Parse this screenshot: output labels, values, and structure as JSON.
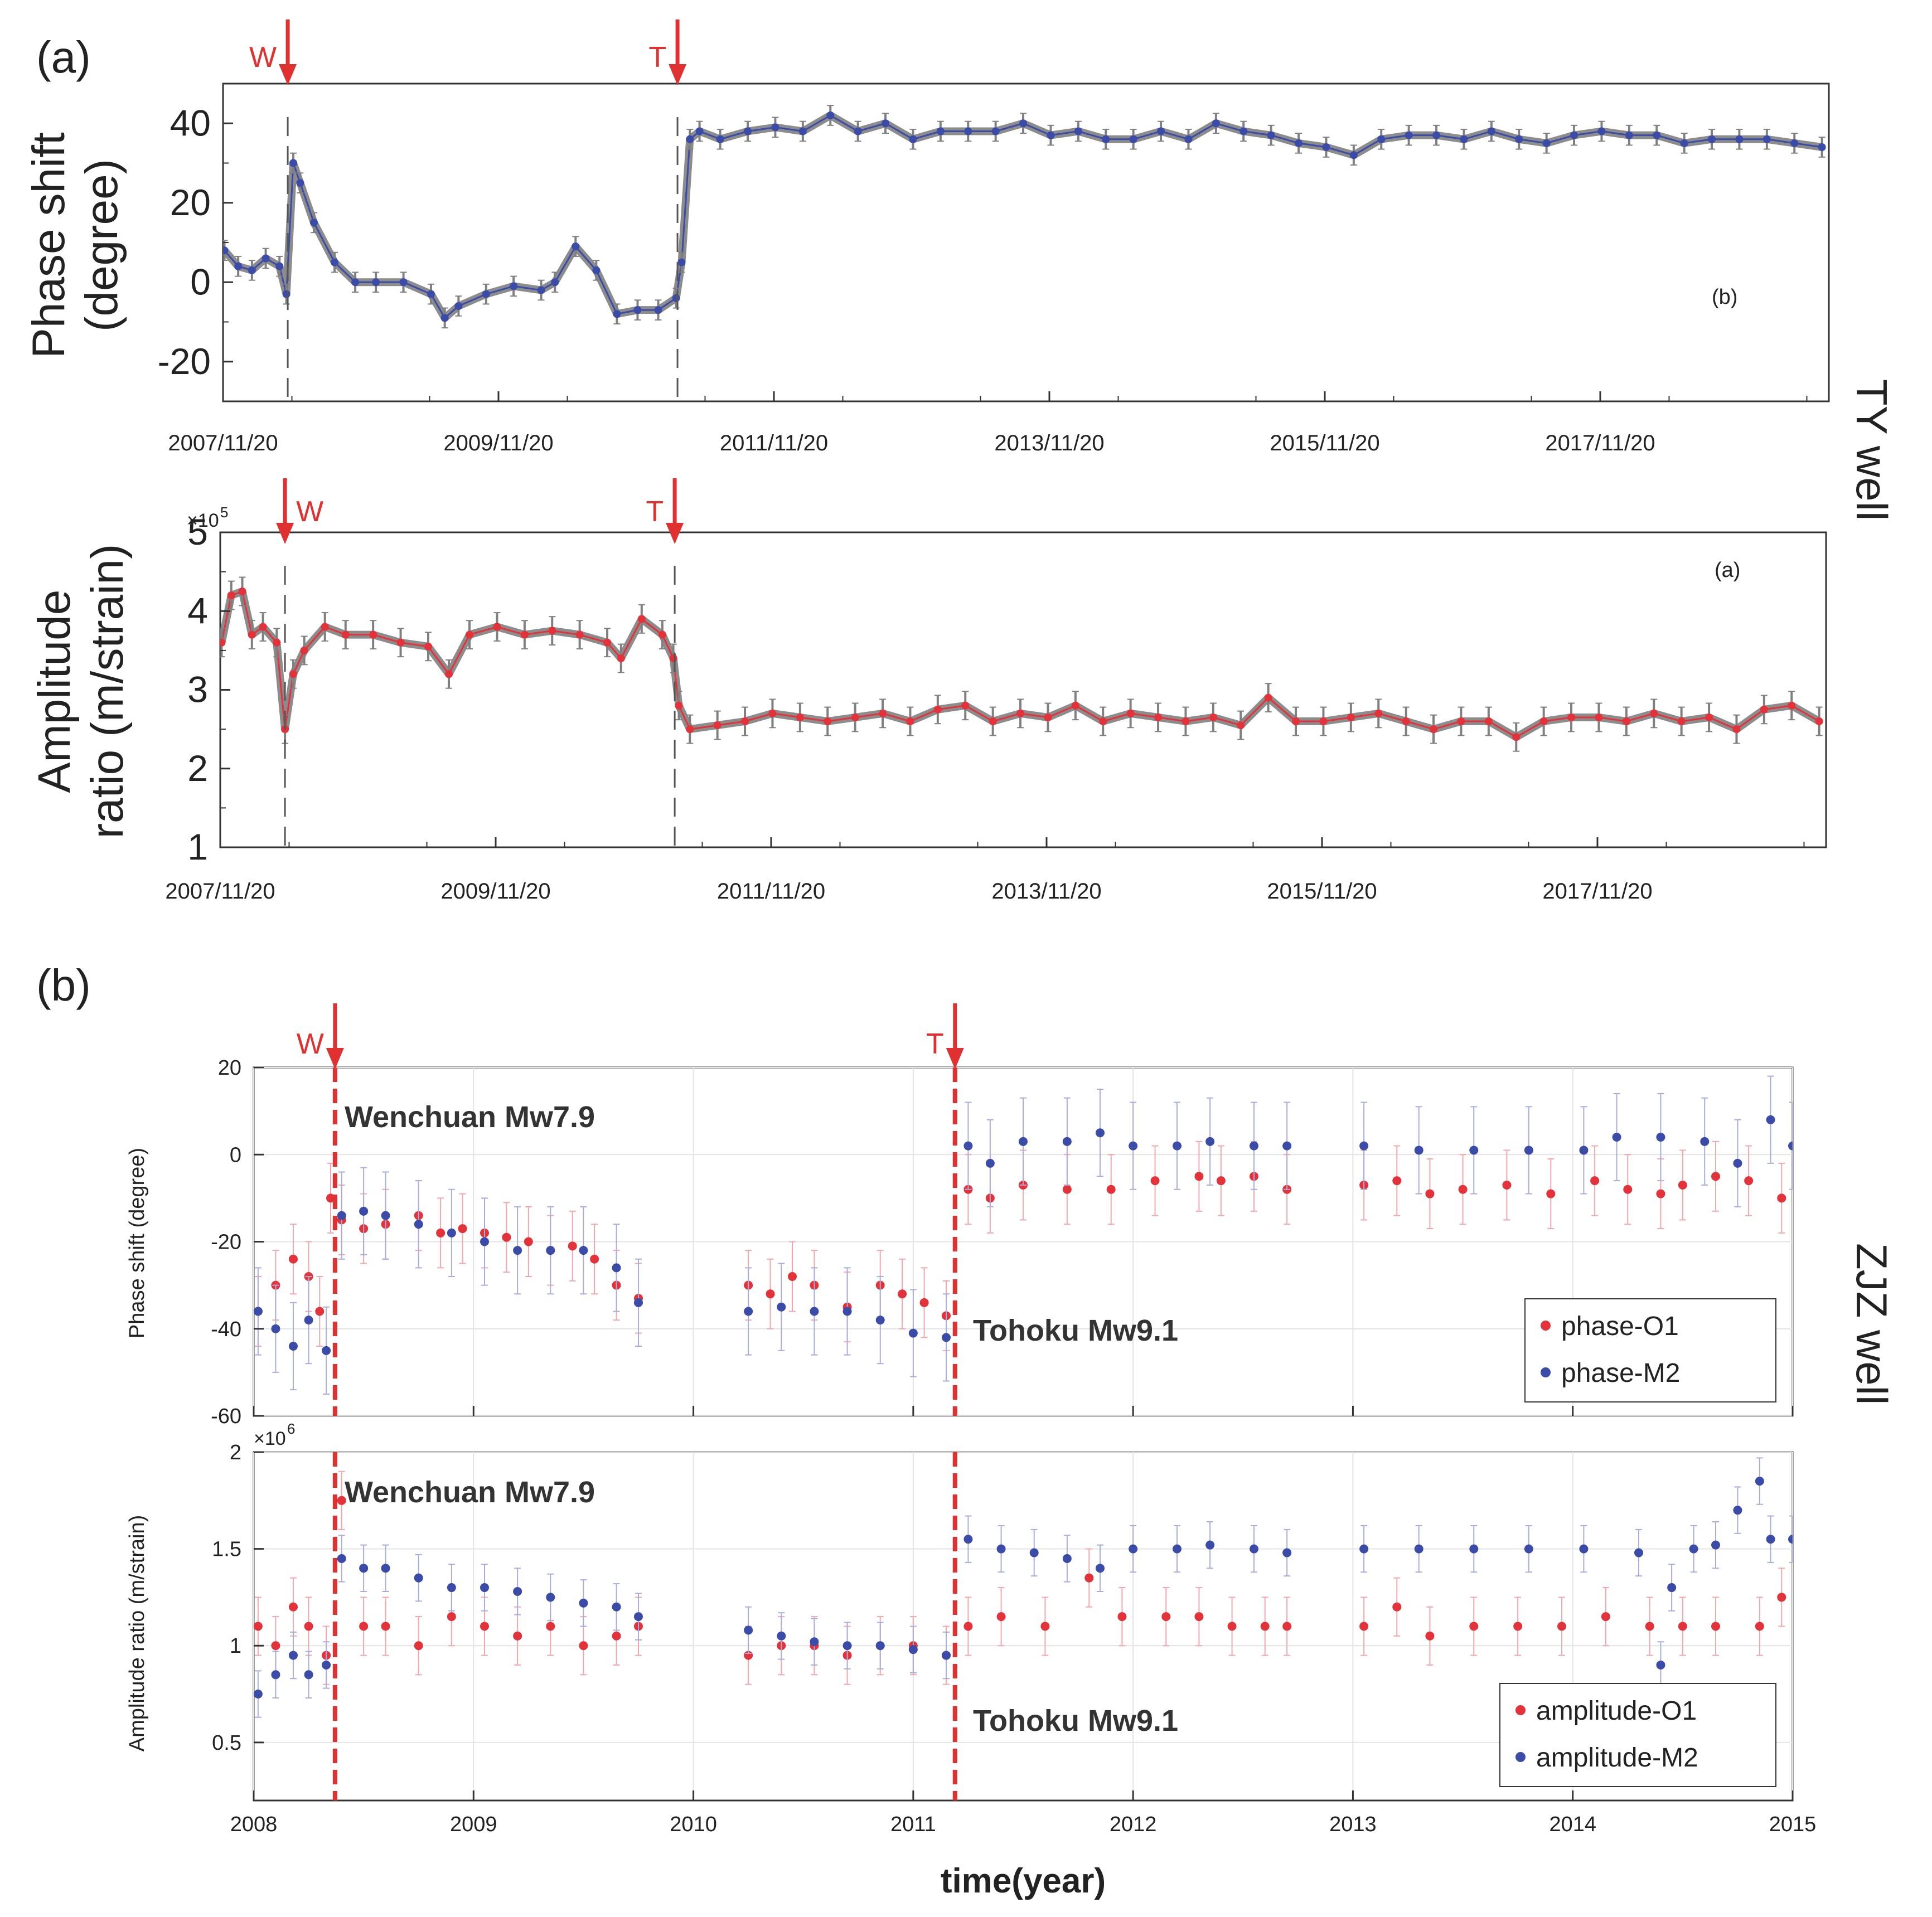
{
  "colors": {
    "red": "#e3323a",
    "blue": "#3b4ba8",
    "gray": "#808080",
    "event": "#e03030",
    "line": "#6f6f6f"
  },
  "labels": {
    "panel_a": "(a)",
    "panel_b": "(b)",
    "ty_well": "TY well",
    "zjz_well": "ZJZ well",
    "event_w": "W",
    "event_t": "T",
    "wenchuan": "Wenchuan Mw7.9",
    "tohoku": "Tohoku Mw9.1",
    "inner_b": "(b)",
    "inner_a": "(a)",
    "sci_1": "×10",
    "sci_1_exp": "5",
    "sci_2": "×10",
    "sci_2_exp": "6",
    "xlabel_bottom": "time(year)"
  },
  "chart_data": [
    {
      "id": "ty-phase",
      "type": "scatter",
      "title": "",
      "ylabel": [
        "Phase shift",
        "(degree)"
      ],
      "xlabel": "",
      "xlim": [
        2007.89,
        2019.55
      ],
      "ylim": [
        -30,
        50
      ],
      "yticks": [
        -20,
        0,
        20,
        40
      ],
      "xticks": [
        2007.89,
        2009.89,
        2011.89,
        2013.89,
        2015.89,
        2017.89
      ],
      "xticklabels": [
        "2007/11/20",
        "2009/11/20",
        "2011/11/20",
        "2013/11/20",
        "2015/11/20",
        "2017/11/20"
      ],
      "events": [
        {
          "label": "W",
          "x": 2008.36
        },
        {
          "label": "T",
          "x": 2011.19
        }
      ],
      "series": [
        {
          "name": "phase shift",
          "color": "blue",
          "x": [
            2007.9,
            2008.0,
            2008.1,
            2008.2,
            2008.3,
            2008.35,
            2008.4,
            2008.45,
            2008.55,
            2008.7,
            2008.85,
            2009.0,
            2009.2,
            2009.4,
            2009.5,
            2009.6,
            2009.8,
            2010.0,
            2010.2,
            2010.3,
            2010.45,
            2010.6,
            2010.75,
            2010.9,
            2011.05,
            2011.18,
            2011.22,
            2011.28,
            2011.35,
            2011.5,
            2011.7,
            2011.9,
            2012.1,
            2012.3,
            2012.5,
            2012.7,
            2012.9,
            2013.1,
            2013.3,
            2013.5,
            2013.7,
            2013.9,
            2014.1,
            2014.3,
            2014.5,
            2014.7,
            2014.9,
            2015.1,
            2015.3,
            2015.5,
            2015.7,
            2015.9,
            2016.1,
            2016.3,
            2016.5,
            2016.7,
            2016.9,
            2017.1,
            2017.3,
            2017.5,
            2017.7,
            2017.9,
            2018.1,
            2018.3,
            2018.5,
            2018.7,
            2018.9,
            2019.1,
            2019.3,
            2019.5
          ],
          "y": [
            8,
            4,
            3,
            6,
            4,
            -3,
            30,
            25,
            15,
            5,
            0,
            0,
            0,
            -3,
            -9,
            -6,
            -3,
            -1,
            -2,
            0,
            9,
            3,
            -8,
            -7,
            -7,
            -4,
            5,
            36,
            38,
            36,
            38,
            39,
            38,
            42,
            38,
            40,
            36,
            38,
            38,
            38,
            40,
            37,
            38,
            36,
            36,
            38,
            36,
            40,
            38,
            37,
            35,
            34,
            32,
            36,
            37,
            37,
            36,
            38,
            36,
            35,
            37,
            38,
            37,
            37,
            35,
            36,
            36,
            36,
            35,
            34
          ],
          "err": 2.5
        }
      ]
    },
    {
      "id": "ty-amp",
      "type": "scatter",
      "title": "",
      "ylabel": [
        "Amplitude",
        "ratio (m/strain)"
      ],
      "xlabel": "",
      "xlim": [
        2007.89,
        2019.55
      ],
      "ylim": [
        1,
        5
      ],
      "yticks": [
        1,
        2,
        3,
        4,
        5
      ],
      "xticks": [
        2007.89,
        2009.89,
        2011.89,
        2013.89,
        2015.89,
        2017.89
      ],
      "xticklabels": [
        "2007/11/20",
        "2009/11/20",
        "2011/11/20",
        "2013/11/20",
        "2015/11/20",
        "2017/11/20"
      ],
      "events": [
        {
          "label": "W",
          "x": 2008.36
        },
        {
          "label": "T",
          "x": 2011.19
        }
      ],
      "series": [
        {
          "name": "amplitude ratio",
          "color": "red",
          "x": [
            2007.9,
            2007.97,
            2008.05,
            2008.12,
            2008.2,
            2008.3,
            2008.36,
            2008.42,
            2008.5,
            2008.65,
            2008.8,
            2009.0,
            2009.2,
            2009.4,
            2009.55,
            2009.7,
            2009.9,
            2010.1,
            2010.3,
            2010.5,
            2010.7,
            2010.8,
            2010.95,
            2011.1,
            2011.18,
            2011.22,
            2011.3,
            2011.5,
            2011.7,
            2011.9,
            2012.1,
            2012.3,
            2012.5,
            2012.7,
            2012.9,
            2013.1,
            2013.3,
            2013.5,
            2013.7,
            2013.9,
            2014.1,
            2014.3,
            2014.5,
            2014.7,
            2014.9,
            2015.1,
            2015.3,
            2015.5,
            2015.7,
            2015.9,
            2016.1,
            2016.3,
            2016.5,
            2016.7,
            2016.9,
            2017.1,
            2017.3,
            2017.5,
            2017.7,
            2017.9,
            2018.1,
            2018.3,
            2018.5,
            2018.7,
            2018.9,
            2019.1,
            2019.3,
            2019.5
          ],
          "y": [
            3.6,
            4.2,
            4.25,
            3.7,
            3.8,
            3.6,
            2.5,
            3.2,
            3.5,
            3.8,
            3.7,
            3.7,
            3.6,
            3.55,
            3.2,
            3.7,
            3.8,
            3.7,
            3.75,
            3.7,
            3.6,
            3.4,
            3.9,
            3.7,
            3.4,
            2.8,
            2.5,
            2.55,
            2.6,
            2.7,
            2.65,
            2.6,
            2.65,
            2.7,
            2.6,
            2.75,
            2.8,
            2.6,
            2.7,
            2.65,
            2.8,
            2.6,
            2.7,
            2.65,
            2.6,
            2.65,
            2.55,
            2.9,
            2.6,
            2.6,
            2.65,
            2.7,
            2.6,
            2.5,
            2.6,
            2.6,
            2.4,
            2.6,
            2.65,
            2.65,
            2.6,
            2.7,
            2.6,
            2.65,
            2.5,
            2.75,
            2.8,
            2.6
          ],
          "err": 0.18
        }
      ]
    },
    {
      "id": "zjz-phase",
      "type": "scatter",
      "title": "",
      "ylabel": "Phase shift (degree)",
      "xlabel": "",
      "xlim": [
        2008,
        2015
      ],
      "ylim": [
        -60,
        20
      ],
      "yticks": [
        -60,
        -40,
        -20,
        0,
        20
      ],
      "xticks": [
        2008,
        2009,
        2010,
        2011,
        2012,
        2013,
        2014,
        2015
      ],
      "xticklabels": [],
      "events": [
        {
          "label": "W",
          "x": 2008.37
        },
        {
          "label": "T",
          "x": 2011.19
        }
      ],
      "legend": {
        "position": "bottom-right",
        "entries": [
          "phase-O1",
          "phase-M2"
        ]
      },
      "series": [
        {
          "name": "phase-O1",
          "color": "red",
          "x": [
            2008.02,
            2008.1,
            2008.18,
            2008.25,
            2008.3,
            2008.35,
            2008.4,
            2008.5,
            2008.6,
            2008.75,
            2008.85,
            2008.95,
            2009.05,
            2009.15,
            2009.25,
            2009.35,
            2009.45,
            2009.55,
            2009.65,
            2009.75,
            2010.25,
            2010.35,
            2010.45,
            2010.55,
            2010.7,
            2010.85,
            2010.95,
            2011.05,
            2011.15,
            2011.25,
            2011.35,
            2011.5,
            2011.7,
            2011.9,
            2012.1,
            2012.3,
            2012.4,
            2012.55,
            2012.7,
            2013.05,
            2013.2,
            2013.35,
            2013.5,
            2013.7,
            2013.9,
            2014.1,
            2014.25,
            2014.4,
            2014.5,
            2014.65,
            2014.8,
            2014.95
          ],
          "y": [
            -36,
            -30,
            -24,
            -28,
            -36,
            -10,
            -15,
            -17,
            -16,
            -14,
            -18,
            -17,
            -18,
            -19,
            -20,
            -22,
            -21,
            -24,
            -30,
            -33,
            -30,
            -32,
            -28,
            -30,
            -35,
            -30,
            -32,
            -34,
            -37,
            -8,
            -10,
            -7,
            -8,
            -8,
            -6,
            -5,
            -6,
            -5,
            -8,
            -7,
            -6,
            -9,
            -8,
            -7,
            -9,
            -6,
            -8,
            -9,
            -7,
            -5,
            -6,
            -10
          ],
          "err": 8
        },
        {
          "name": "phase-M2",
          "color": "blue",
          "x": [
            2008.02,
            2008.1,
            2008.18,
            2008.25,
            2008.33,
            2008.4,
            2008.5,
            2008.6,
            2008.75,
            2008.9,
            2009.05,
            2009.2,
            2009.35,
            2009.5,
            2009.65,
            2009.75,
            2010.25,
            2010.4,
            2010.55,
            2010.7,
            2010.85,
            2011.0,
            2011.15,
            2011.25,
            2011.35,
            2011.5,
            2011.7,
            2011.85,
            2012.0,
            2012.2,
            2012.35,
            2012.55,
            2012.7,
            2013.05,
            2013.3,
            2013.55,
            2013.8,
            2014.05,
            2014.2,
            2014.4,
            2014.6,
            2014.75,
            2014.9,
            2015.0
          ],
          "y": [
            -36,
            -40,
            -44,
            -38,
            -45,
            -14,
            -13,
            -14,
            -16,
            -18,
            -20,
            -22,
            -22,
            -22,
            -26,
            -34,
            -36,
            -35,
            -36,
            -36,
            -38,
            -41,
            -42,
            2,
            -2,
            3,
            3,
            5,
            2,
            2,
            3,
            2,
            2,
            2,
            1,
            1,
            1,
            1,
            4,
            4,
            3,
            -2,
            8,
            2
          ],
          "err": 10
        }
      ]
    },
    {
      "id": "zjz-amp",
      "type": "scatter",
      "title": "",
      "ylabel": "Amplitude ratio (m/strain)",
      "xlabel": "time(year)",
      "xlim": [
        2008,
        2015
      ],
      "ylim": [
        0.2,
        2
      ],
      "yticks": [
        0.5,
        1,
        1.5,
        2
      ],
      "xticks": [
        2008,
        2009,
        2010,
        2011,
        2012,
        2013,
        2014,
        2015
      ],
      "xticklabels": [
        "2008",
        "2009",
        "2010",
        "2011",
        "2012",
        "2013",
        "2014",
        "2015"
      ],
      "events": [
        {
          "label": "W",
          "x": 2008.37
        },
        {
          "label": "T",
          "x": 2011.19
        }
      ],
      "legend": {
        "position": "bottom-right",
        "entries": [
          "amplitude-O1",
          "amplitude-M2"
        ]
      },
      "series": [
        {
          "name": "amplitude-O1",
          "color": "red",
          "x": [
            2008.02,
            2008.1,
            2008.18,
            2008.25,
            2008.33,
            2008.4,
            2008.5,
            2008.6,
            2008.75,
            2008.9,
            2009.05,
            2009.2,
            2009.35,
            2009.5,
            2009.65,
            2009.75,
            2010.25,
            2010.4,
            2010.55,
            2010.7,
            2010.85,
            2011.0,
            2011.15,
            2011.25,
            2011.4,
            2011.6,
            2011.8,
            2011.95,
            2012.15,
            2012.3,
            2012.45,
            2012.6,
            2012.7,
            2013.05,
            2013.2,
            2013.35,
            2013.55,
            2013.75,
            2013.95,
            2014.15,
            2014.35,
            2014.5,
            2014.65,
            2014.85,
            2014.95
          ],
          "y": [
            1.1,
            1.0,
            1.2,
            1.1,
            0.95,
            1.75,
            1.1,
            1.1,
            1.0,
            1.15,
            1.1,
            1.05,
            1.1,
            1.0,
            1.05,
            1.1,
            0.95,
            1.0,
            1.0,
            0.95,
            1.0,
            1.0,
            0.95,
            1.1,
            1.15,
            1.1,
            1.35,
            1.15,
            1.15,
            1.15,
            1.1,
            1.1,
            1.1,
            1.1,
            1.2,
            1.05,
            1.1,
            1.1,
            1.1,
            1.15,
            1.1,
            1.1,
            1.1,
            1.1,
            1.25
          ],
          "err": 0.15
        },
        {
          "name": "amplitude-M2",
          "color": "blue",
          "x": [
            2008.02,
            2008.1,
            2008.18,
            2008.25,
            2008.33,
            2008.4,
            2008.5,
            2008.6,
            2008.75,
            2008.9,
            2009.05,
            2009.2,
            2009.35,
            2009.5,
            2009.65,
            2009.75,
            2010.25,
            2010.4,
            2010.55,
            2010.7,
            2010.85,
            2011.0,
            2011.15,
            2011.25,
            2011.4,
            2011.55,
            2011.7,
            2011.85,
            2012.0,
            2012.2,
            2012.35,
            2012.55,
            2012.7,
            2013.05,
            2013.3,
            2013.55,
            2013.8,
            2014.05,
            2014.3,
            2014.4,
            2014.45,
            2014.55,
            2014.65,
            2014.75,
            2014.85,
            2014.9,
            2015.0
          ],
          "y": [
            0.75,
            0.85,
            0.95,
            0.85,
            0.9,
            1.45,
            1.4,
            1.4,
            1.35,
            1.3,
            1.3,
            1.28,
            1.25,
            1.22,
            1.2,
            1.15,
            1.08,
            1.05,
            1.02,
            1.0,
            1.0,
            0.98,
            0.95,
            1.55,
            1.5,
            1.48,
            1.45,
            1.4,
            1.5,
            1.5,
            1.52,
            1.5,
            1.48,
            1.5,
            1.5,
            1.5,
            1.5,
            1.5,
            1.48,
            0.9,
            1.3,
            1.5,
            1.52,
            1.7,
            1.85,
            1.55,
            1.55
          ],
          "err": 0.12
        }
      ]
    }
  ]
}
